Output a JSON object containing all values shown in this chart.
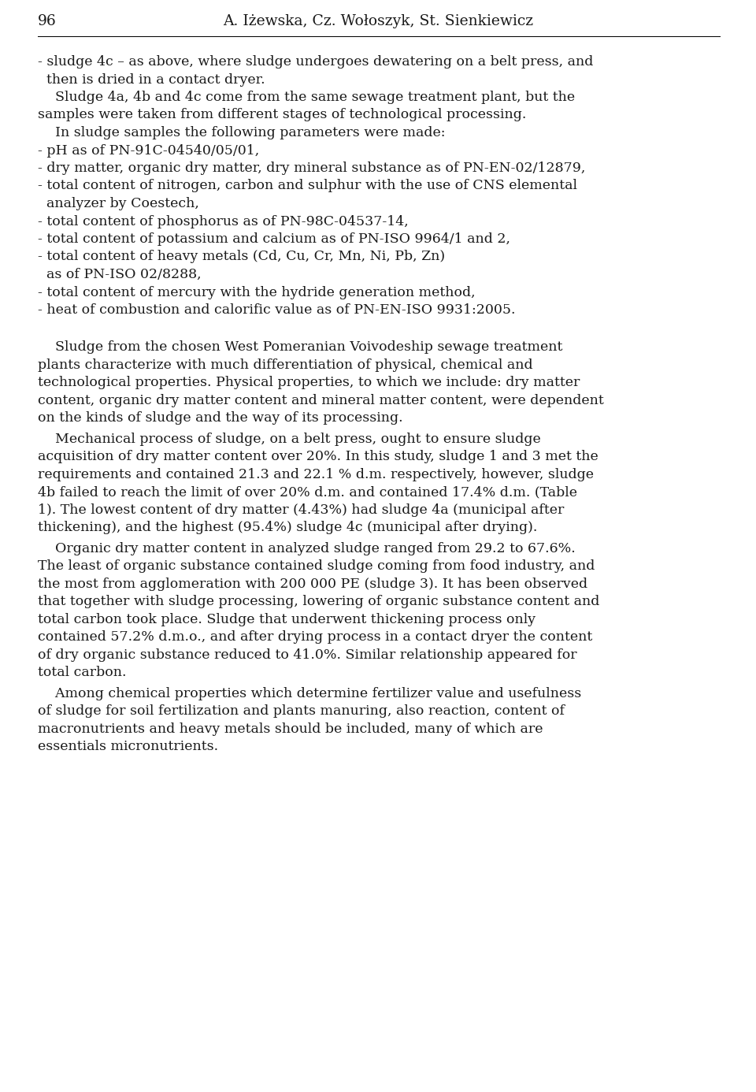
{
  "page_number": "96",
  "header_authors": "A. Iżewska, Cz. Wołoszyk, St. Sienkiewicz",
  "background_color": "#ffffff",
  "text_color": "#1a1a1a",
  "paragraphs": [
    {
      "type": "bullet",
      "lines": [
        "- sludge 4c – as above, where sludge undergoes dewatering on a belt press, and",
        "  then is dried in a contact dryer."
      ]
    },
    {
      "type": "indent",
      "lines": [
        "    Sludge 4a, 4b and 4c come from the same sewage treatment plant, but the",
        "samples were taken from different stages of technological processing."
      ]
    },
    {
      "type": "indent",
      "lines": [
        "    In sludge samples the following parameters were made:"
      ]
    },
    {
      "type": "bullet",
      "lines": [
        "- pH as of PN-91C-04540/05/01,"
      ]
    },
    {
      "type": "bullet",
      "lines": [
        "- dry matter, organic dry matter, dry mineral substance as of PN-EN-02/12879,"
      ]
    },
    {
      "type": "bullet",
      "lines": [
        "- total content of nitrogen, carbon and sulphur with the use of CNS elemental",
        "  analyzer by Coestech,"
      ]
    },
    {
      "type": "bullet",
      "lines": [
        "- total content of phosphorus as of PN-98C-04537-14,"
      ]
    },
    {
      "type": "bullet",
      "lines": [
        "- total content of potassium and calcium as of PN-ISO 9964/1 and 2,"
      ]
    },
    {
      "type": "bullet",
      "lines": [
        "- total content of heavy metals (Cd, Cu, Cr, Mn, Ni, Pb, Zn)",
        "  as of PN-ISO 02/8288,"
      ]
    },
    {
      "type": "bullet",
      "lines": [
        "- total content of mercury with the hydride generation method,"
      ]
    },
    {
      "type": "bullet",
      "lines": [
        "- heat of combustion and calorific value as of PN-EN-ISO 9931:2005."
      ]
    },
    {
      "type": "blank"
    },
    {
      "type": "body",
      "lines": [
        "    Sludge from the chosen West Pomeranian Voivodeship sewage treatment",
        "plants characterize with much differentiation of physical, chemical and",
        "technological properties. Physical properties, to which we include: dry matter",
        "content, organic dry matter content and mineral matter content, were dependent",
        "on the kinds of sludge and the way of its processing."
      ]
    },
    {
      "type": "body",
      "lines": [
        "    Mechanical process of sludge, on a belt press, ought to ensure sludge",
        "acquisition of dry matter content over 20%. In this study, sludge 1 and 3 met the",
        "requirements and contained 21.3 and 22.1 % d.m. respectively, however, sludge",
        "4b failed to reach the limit of over 20% d.m. and contained 17.4% d.m. (Table",
        "1). The lowest content of dry matter (4.43%) had sludge 4a (municipal after",
        "thickening), and the highest (95.4%) sludge 4c (municipal after drying)."
      ]
    },
    {
      "type": "body",
      "lines": [
        "    Organic dry matter content in analyzed sludge ranged from 29.2 to 67.6%.",
        "The least of organic substance contained sludge coming from food industry, and",
        "the most from agglomeration with 200 000 PE (sludge 3). It has been observed",
        "that together with sludge processing, lowering of organic substance content and",
        "total carbon took place. Sludge that underwent thickening process only",
        "contained 57.2% d.m.o., and after drying process in a contact dryer the content",
        "of dry organic substance reduced to 41.0%. Similar relationship appeared for",
        "total carbon."
      ]
    },
    {
      "type": "body",
      "lines": [
        "    Among chemical properties which determine fertilizer value and usefulness",
        "of sludge for soil fertilization and plants manuring, also reaction, content of",
        "macronutrients and heavy metals should be included, many of which are",
        "essentials micronutrients."
      ]
    }
  ]
}
